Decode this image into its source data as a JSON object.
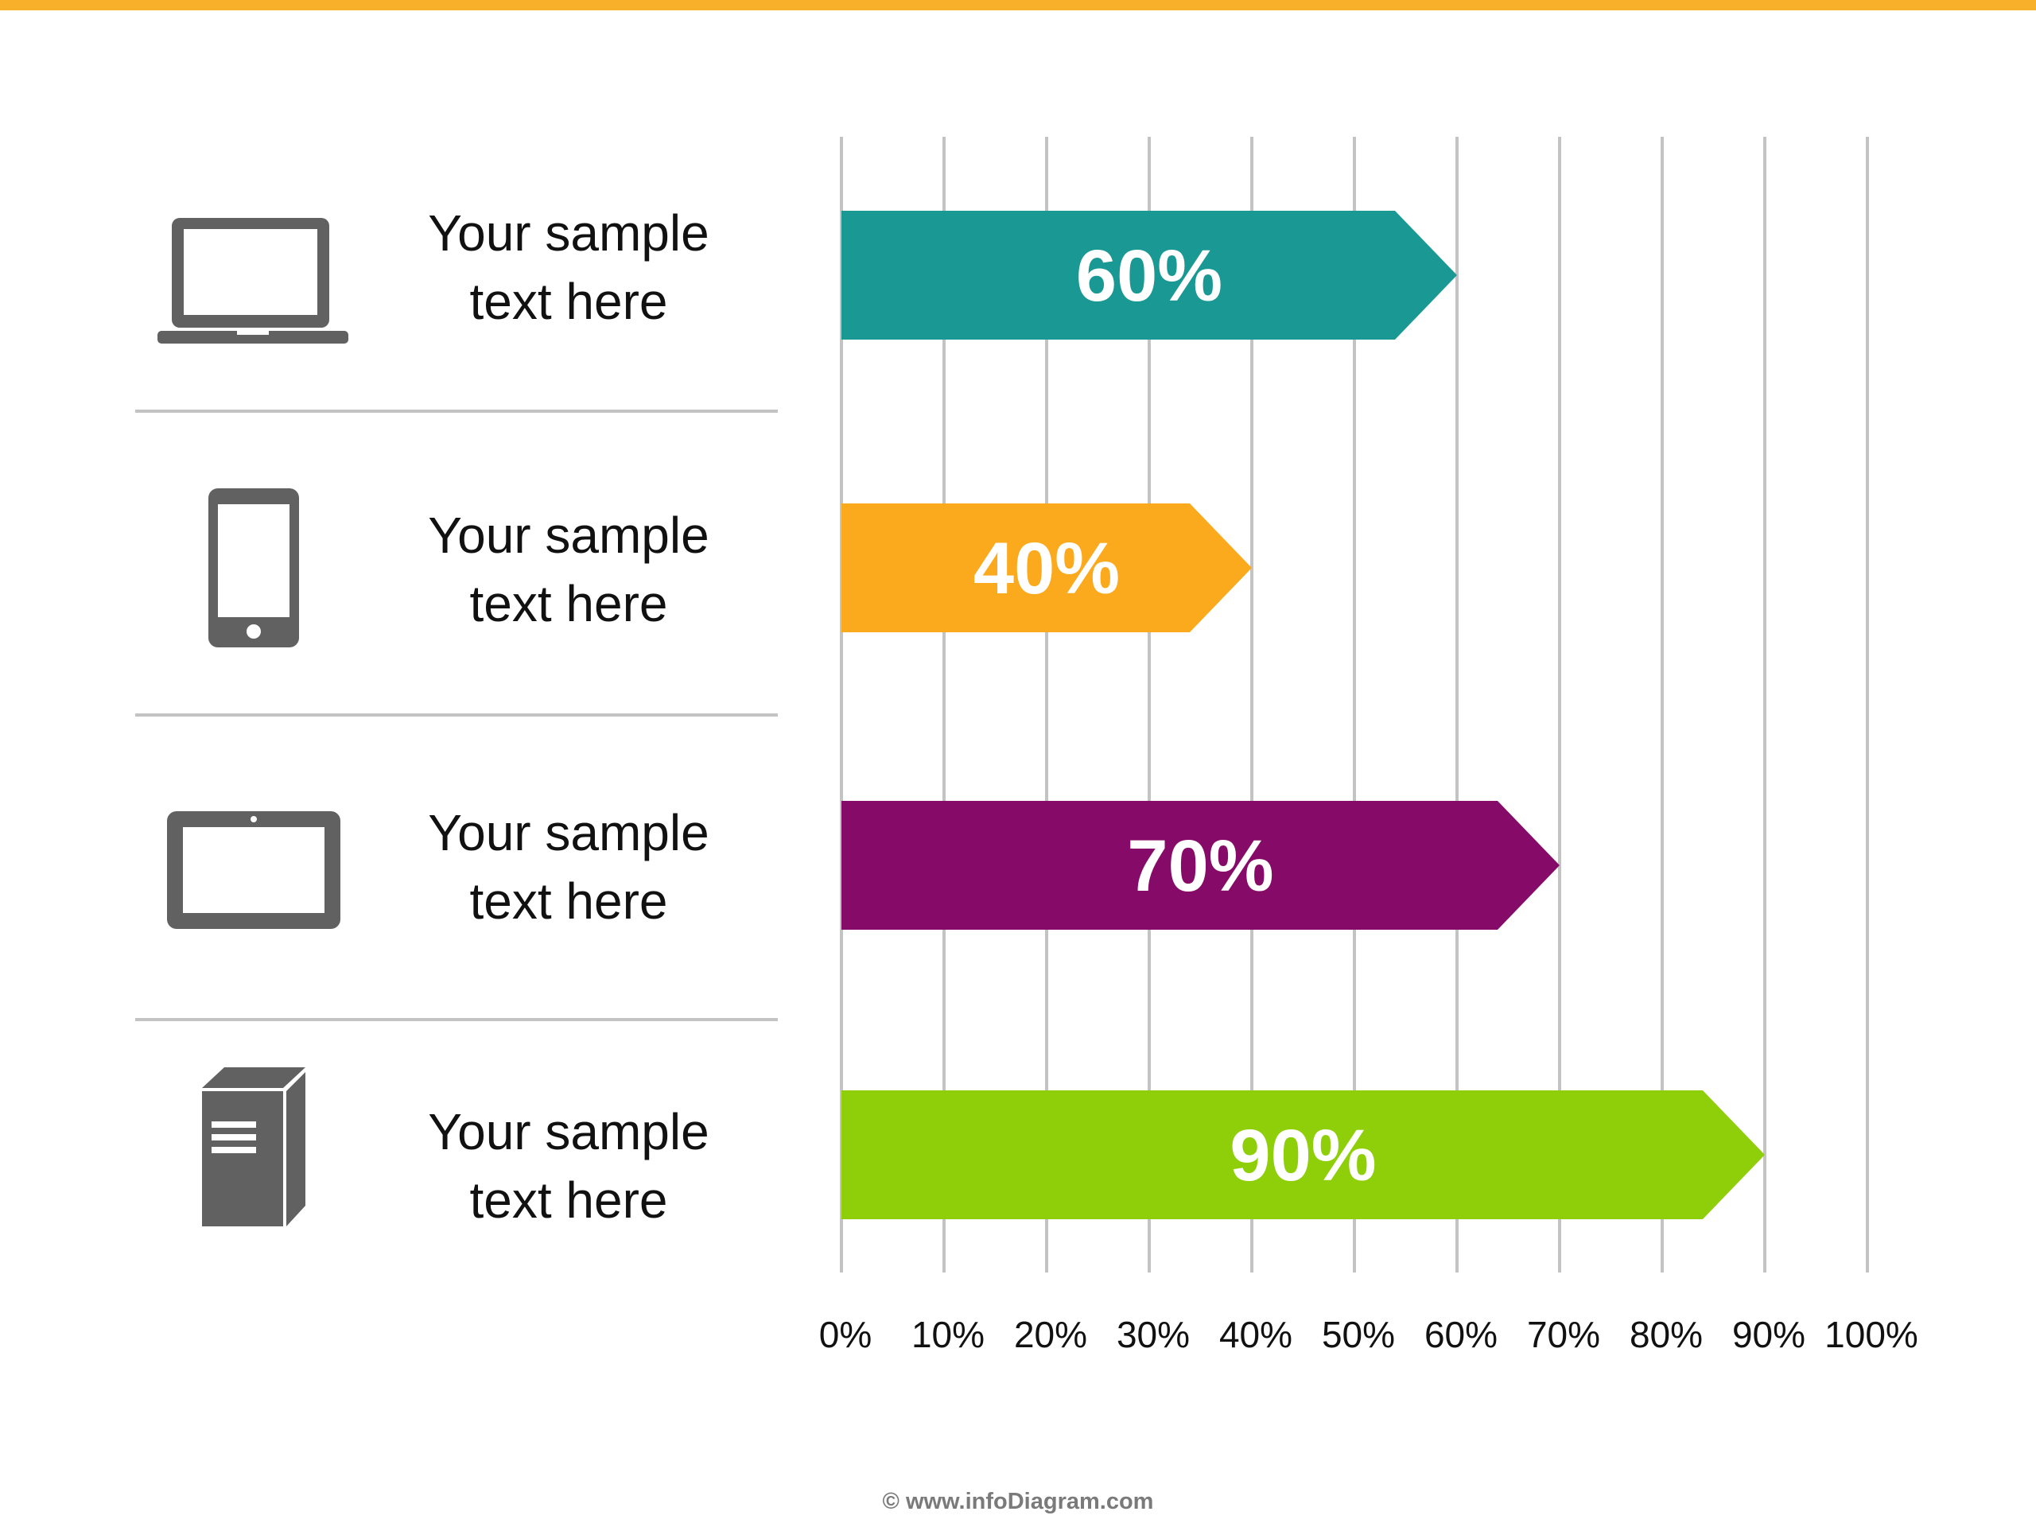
{
  "colors": {
    "accent_bar": "#f8b02a",
    "grid": "#c3c3c3",
    "icon": "#616161",
    "label_text": "#111111",
    "bar_text": "#ffffff"
  },
  "rows": [
    {
      "icon": "laptop-icon",
      "label": "Your sample\ntext here"
    },
    {
      "icon": "smartphone-icon",
      "label": "Your sample\ntext here"
    },
    {
      "icon": "tablet-icon",
      "label": "Your sample\ntext here"
    },
    {
      "icon": "desktop-tower-icon",
      "label": "Your sample\ntext here"
    }
  ],
  "chart_data": {
    "type": "bar",
    "orientation": "horizontal",
    "categories": [
      "Your sample text here",
      "Your sample text here",
      "Your sample text here",
      "Your sample text here"
    ],
    "values": [
      60,
      40,
      70,
      90
    ],
    "value_labels": [
      "60%",
      "40%",
      "70%",
      "90%"
    ],
    "bar_colors": [
      "#1a9994",
      "#fbaa1e",
      "#860b68",
      "#8fcf09"
    ],
    "xlim": [
      0,
      100
    ],
    "xticks": [
      "0%",
      "10%",
      "20%",
      "30%",
      "40%",
      "50%",
      "60%",
      "70%",
      "80%",
      "90%",
      "100%"
    ],
    "grid": "vertical",
    "bar_shape": "arrow"
  },
  "footer": {
    "copyright": "© www.infoDiagram.com"
  }
}
